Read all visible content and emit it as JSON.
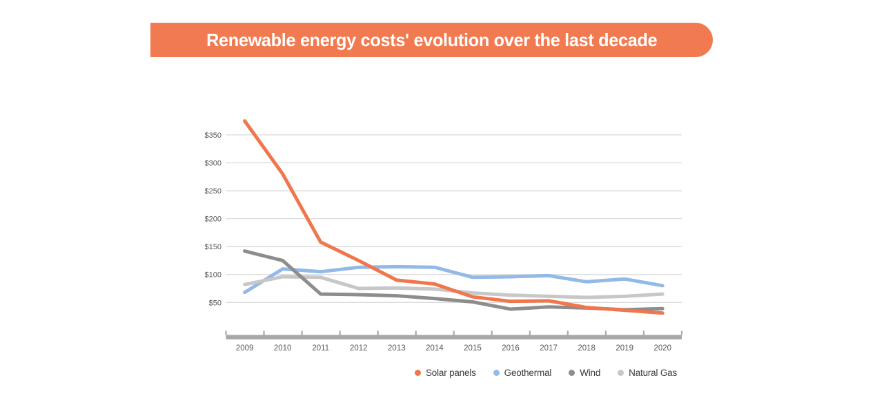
{
  "title": {
    "text": "Renewable energy costs' evolution over the last decade",
    "bar_color": "#F27A50",
    "text_color": "#FFFFFF"
  },
  "chart_data": {
    "type": "line",
    "title": "Renewable energy costs' evolution over the last decade",
    "x": [
      2009,
      2010,
      2011,
      2012,
      2013,
      2014,
      2015,
      2016,
      2017,
      2018,
      2019,
      2020
    ],
    "series": [
      {
        "name": "Solar panels",
        "color": "#F0764C",
        "values": [
          375,
          280,
          158,
          125,
          90,
          83,
          60,
          52,
          53,
          41,
          36,
          31
        ]
      },
      {
        "name": "Geothermal",
        "color": "#92B9E7",
        "values": [
          68,
          110,
          105,
          113,
          114,
          113,
          95,
          96,
          98,
          87,
          92,
          80
        ]
      },
      {
        "name": "Wind",
        "color": "#8D8D8D",
        "values": [
          142,
          125,
          65,
          64,
          62,
          57,
          51,
          38,
          42,
          40,
          37,
          39
        ]
      },
      {
        "name": "Natural Gas",
        "color": "#C7C7C7",
        "values": [
          82,
          96,
          95,
          75,
          76,
          74,
          67,
          63,
          61,
          59,
          61,
          65
        ]
      }
    ],
    "y_ticks": [
      {
        "label": "$350",
        "value": 350
      },
      {
        "label": "$300",
        "value": 300
      },
      {
        "label": "$250",
        "value": 250
      },
      {
        "label": "$200",
        "value": 200
      },
      {
        "label": "$150",
        "value": 150
      },
      {
        "label": "$100",
        "value": 100
      },
      {
        "label": "$50",
        "value": 50
      }
    ],
    "ylim": [
      25,
      385
    ],
    "grid": "horizontal",
    "legend_position": "bottom",
    "colors": {
      "gridline": "#DADADA",
      "axis_bar": "#A8A8A8",
      "tick_text": "#555555"
    }
  }
}
